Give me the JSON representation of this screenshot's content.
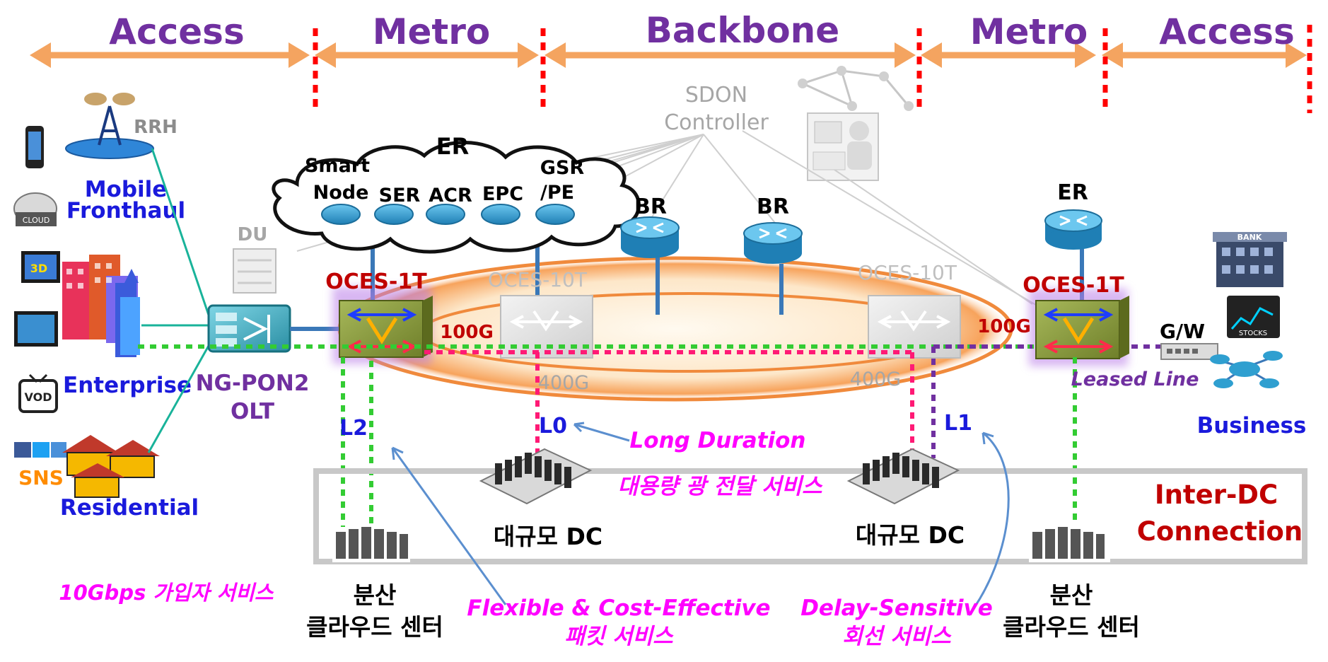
{
  "segments": {
    "access_left": "Access",
    "metro_left": "Metro",
    "backbone": "Backbone",
    "metro_right": "Metro",
    "access_right": "Access"
  },
  "controller": {
    "line1": "SDON",
    "line2": "Controller"
  },
  "er_cloud": {
    "title": "ER",
    "smart": "Smart",
    "node": "Node",
    "ser": "SER",
    "acr": "ACR",
    "epc": "EPC",
    "gsr": "GSR",
    "pe": "/PE"
  },
  "routers": {
    "br_left": "BR",
    "br_right": "BR",
    "er_right": "ER"
  },
  "left_access": {
    "rrh": "RRH",
    "mobile": "Mobile",
    "fronthaul": "Fronthaul",
    "du": "DU",
    "enterprise": "Enterprise",
    "residential": "Residential",
    "cloud_badge": "CLOUD",
    "vod_badge": "VOD",
    "sns_badge": "SNS"
  },
  "olt": {
    "line1": "NG-PON2",
    "line2": "OLT"
  },
  "switches": {
    "oces_left": "OCES-1T",
    "oces_right": "OCES-1T",
    "oces10_left": "OCES-10T",
    "oces10_right": "OCES-10T"
  },
  "rates": {
    "left_100g": "100G",
    "right_100g": "100G",
    "left_400g": "400G",
    "right_400g": "400G"
  },
  "layers": {
    "l2": "L2",
    "l0": "L0",
    "l1": "L1"
  },
  "right_access": {
    "gw": "G/W",
    "leased_line": "Leased Line",
    "business": "Business",
    "bank_badge": "BANK",
    "stocks_badge": "STOCKS"
  },
  "annotations": {
    "long_duration": "Long  Duration",
    "optical_service": "대용량 광 전달 서비스",
    "subscriber_service": "10Gbps 가입자 서비스",
    "flexible_line1": "Flexible  & Cost-Effective",
    "flexible_line2": "패킷 서비스",
    "delay_line1": "Delay-Sensitive",
    "delay_line2": "회선 서비스"
  },
  "datacenters": {
    "large_left": "대규모  DC",
    "large_right": "대규모  DC",
    "dist_left_line1": "분산",
    "dist_left_line2": "클라우드  센터",
    "dist_right_line1": "분산",
    "dist_right_line2": "클라우드  센터",
    "inter_dc_line1": "Inter-DC",
    "inter_dc_line2": "Connection"
  },
  "colors": {
    "segment_text": "#7030a0",
    "arrow": "#f4a460",
    "boundary": "#ff0000",
    "title_blue": "#1a1adc",
    "maroon": "#c00000",
    "magenta": "#ff00ff",
    "dotted_green": "#33cc33",
    "dotted_pink": "#ff1a75",
    "dotted_purple": "#7030a0",
    "router_blue": "#2f9fd0",
    "gray_text": "#a6a6a6"
  }
}
